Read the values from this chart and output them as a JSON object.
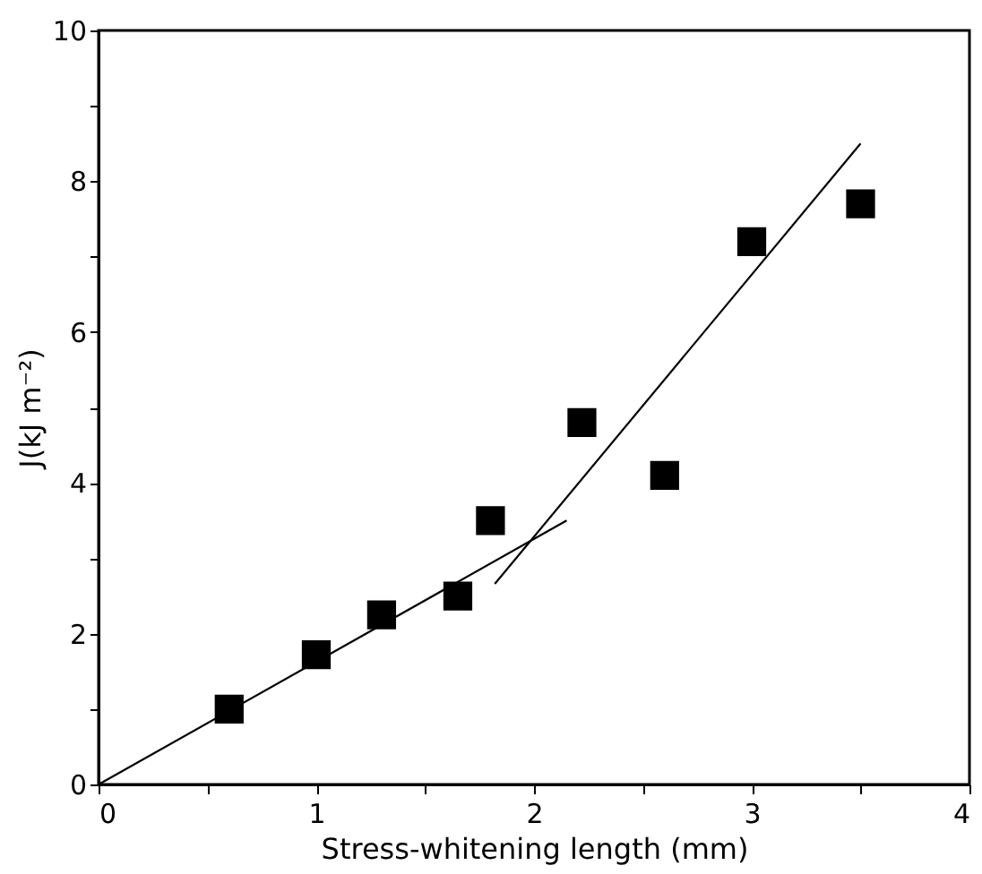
{
  "chart_data": {
    "type": "scatter",
    "xlabel": "Stress-whitening length (mm)",
    "ylabel": "J(kJ m⁻²)",
    "xlim": [
      0,
      4
    ],
    "ylim": [
      0,
      10
    ],
    "xticks": [
      0,
      {
        "value": 0.5,
        "label": null
      },
      1,
      {
        "value": 1.5,
        "label": null
      },
      2,
      {
        "value": 2.5,
        "label": null
      },
      3,
      {
        "value": 3.5,
        "label": null
      },
      4
    ],
    "yticks": [
      0,
      {
        "value": 1,
        "label": null
      },
      2,
      {
        "value": 3,
        "label": null
      },
      4,
      {
        "value": 5,
        "label": null
      },
      6,
      {
        "value": 7,
        "label": null
      },
      8,
      {
        "value": 9,
        "label": null
      },
      10
    ],
    "grid": false,
    "series": [
      {
        "marker": "square",
        "color": "#000000",
        "x": [
          0.6,
          1.0,
          1.3,
          1.65,
          1.8,
          2.22,
          2.6,
          3.0,
          3.5
        ],
        "values": [
          1.0,
          1.72,
          2.25,
          2.5,
          3.5,
          4.8,
          4.1,
          7.2,
          7.7
        ]
      },
      {
        "type": "line",
        "line_style": "solid",
        "color": "#000000",
        "x": [
          0,
          2.15
        ],
        "values": [
          0,
          3.5
        ]
      },
      {
        "type": "line",
        "line_style": "solid",
        "color": "#000000",
        "x": [
          1.82,
          3.5
        ],
        "values": [
          2.66,
          8.5
        ]
      }
    ]
  }
}
